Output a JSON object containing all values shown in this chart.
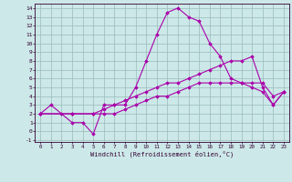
{
  "xlabel": "Windchill (Refroidissement éolien,°C)",
  "bg_color": "#cce8e8",
  "line_color": "#aa00aa",
  "grid_color": "#99bbbb",
  "xlim": [
    -0.5,
    23.5
  ],
  "ylim": [
    -1.2,
    14.5
  ],
  "xticks": [
    0,
    1,
    2,
    3,
    4,
    5,
    6,
    7,
    8,
    9,
    10,
    11,
    12,
    13,
    14,
    15,
    16,
    17,
    18,
    19,
    20,
    21,
    22,
    23
  ],
  "yticks": [
    -1,
    0,
    1,
    2,
    3,
    4,
    5,
    6,
    7,
    8,
    9,
    10,
    11,
    12,
    13,
    14
  ],
  "line1_x": [
    0,
    1,
    2,
    3,
    4,
    5,
    6,
    7,
    8,
    9,
    10,
    11,
    12,
    13,
    14,
    15,
    16,
    17,
    18,
    19,
    20,
    21,
    22,
    23
  ],
  "line1_y": [
    2,
    3,
    2,
    1,
    1,
    -0.3,
    3,
    3,
    3,
    5,
    8,
    11,
    13.5,
    14,
    13,
    12.5,
    10,
    8.5,
    6,
    5.5,
    5,
    4.5,
    3,
    4.5
  ],
  "line2_x": [
    0,
    3,
    5,
    6,
    7,
    8,
    9,
    10,
    11,
    12,
    13,
    14,
    15,
    16,
    17,
    18,
    19,
    20,
    21,
    22,
    23
  ],
  "line2_y": [
    2,
    2,
    2,
    2.5,
    3,
    3.5,
    4,
    4.5,
    5,
    5.5,
    5.5,
    6,
    6.5,
    7,
    7.5,
    8,
    8,
    8.5,
    5,
    3,
    4.5
  ],
  "line3_x": [
    0,
    3,
    5,
    6,
    7,
    8,
    9,
    10,
    11,
    12,
    13,
    14,
    15,
    16,
    17,
    18,
    19,
    20,
    21,
    22,
    23
  ],
  "line3_y": [
    2,
    2,
    2,
    2,
    2,
    2.5,
    3,
    3.5,
    4,
    4,
    4.5,
    5,
    5.5,
    5.5,
    5.5,
    5.5,
    5.5,
    5.5,
    5.5,
    4,
    4.5
  ]
}
